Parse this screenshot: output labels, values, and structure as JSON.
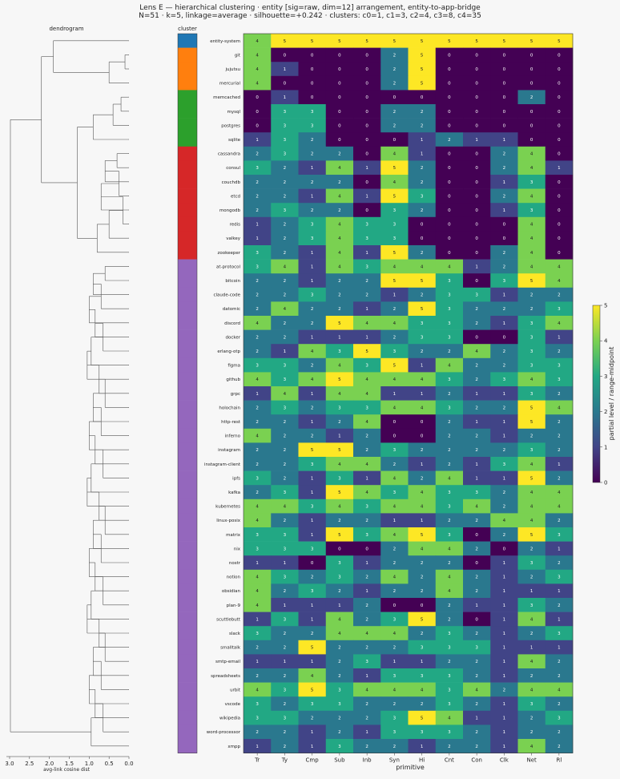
{
  "title_line1": "Lens E — hierarchical clustering · entity [sig=raw, dim=12] arrangement, entity-to-app-bridge",
  "title_line2": "N=51 · k=5, linkage=average · silhouette=+0.242 · clusters: c0=1, c1=3, c2=4, c3=8, c4=35",
  "dendrogram": {
    "title": "dendrogram",
    "xlabel": "avg-link cosine dist",
    "ticks": [
      "3.0",
      "2.5",
      "2.0",
      "1.5",
      "1.0",
      "0.5",
      "0.0"
    ]
  },
  "cluster_strip": {
    "title": "cluster",
    "colors": [
      "#1f77b4",
      "#ff7f0e",
      "#2ca02c",
      "#d62728",
      "#9467bd"
    ],
    "assignments": [
      0,
      1,
      1,
      1,
      2,
      2,
      2,
      2,
      3,
      3,
      3,
      3,
      3,
      3,
      3,
      3,
      4,
      4,
      4,
      4,
      4,
      4,
      4,
      4,
      4,
      4,
      4,
      4,
      4,
      4,
      4,
      4,
      4,
      4,
      4,
      4,
      4,
      4,
      4,
      4,
      4,
      4,
      4,
      4,
      4,
      4,
      4,
      4,
      4,
      4,
      4
    ]
  },
  "colorbar": {
    "label": "partial level / range-midpoint",
    "ticks": [
      "0",
      "1",
      "2",
      "3",
      "4",
      "5"
    ]
  },
  "chart_data": {
    "type": "heatmap",
    "xlabel": "primitive",
    "columns": [
      "Tr",
      "Ty",
      "Cmp",
      "Sub",
      "Inb",
      "Syn",
      "Hi",
      "Cnt",
      "Con",
      "Clk",
      "Net",
      "Rl"
    ],
    "rows": [
      "entity-system",
      "git",
      "jujutsu",
      "mercurial",
      "memcached",
      "mysql",
      "postgres",
      "sqlite",
      "cassandra",
      "consul",
      "couchdb",
      "etcd",
      "mongodb",
      "redis",
      "valkey",
      "zookeeper",
      "at-protocol",
      "bitcoin",
      "claude-code",
      "datomic",
      "discord",
      "docker",
      "erlang-otp",
      "figma",
      "github",
      "grpc",
      "holochain",
      "http-rest",
      "inferno",
      "instagram",
      "instagram-client",
      "ipfs",
      "kafka",
      "kubernetes",
      "linux-posix",
      "matrix",
      "nix",
      "nostr",
      "notion",
      "obsidian",
      "plan-9",
      "scuttlebutt",
      "slack",
      "smalltalk",
      "smtp-email",
      "spreadsheets",
      "urbit",
      "vscode",
      "wikipedia",
      "word-processor",
      "xmpp"
    ],
    "values": [
      [
        4,
        5,
        5,
        5,
        5,
        5,
        5,
        5,
        5,
        5,
        5,
        5
      ],
      [
        4,
        0,
        0,
        0,
        0,
        2,
        5,
        0,
        0,
        0,
        0,
        0
      ],
      [
        4,
        1,
        0,
        0,
        0,
        2,
        5,
        0,
        0,
        0,
        0,
        0
      ],
      [
        4,
        0,
        0,
        0,
        0,
        2,
        5,
        0,
        0,
        0,
        0,
        0
      ],
      [
        0,
        1,
        0,
        0,
        0,
        0,
        0,
        0,
        0,
        0,
        2,
        0
      ],
      [
        0,
        3,
        3,
        0,
        0,
        2,
        2,
        0,
        0,
        0,
        0,
        0
      ],
      [
        0,
        3,
        3,
        0,
        0,
        2,
        2,
        0,
        0,
        0,
        0,
        0
      ],
      [
        1,
        3,
        2,
        0,
        0,
        0,
        1,
        2,
        1,
        1,
        0,
        0
      ],
      [
        2,
        3,
        2,
        2,
        0,
        4,
        1,
        0,
        0,
        2,
        4,
        0
      ],
      [
        3,
        2,
        1,
        4,
        1,
        5,
        2,
        0,
        0,
        2,
        4,
        1
      ],
      [
        2,
        2,
        2,
        2,
        0,
        4,
        2,
        0,
        0,
        1,
        3,
        0
      ],
      [
        2,
        2,
        1,
        4,
        1,
        5,
        3,
        0,
        0,
        2,
        4,
        0
      ],
      [
        2,
        3,
        2,
        2,
        0,
        3,
        2,
        0,
        0,
        1,
        3,
        0
      ],
      [
        1,
        2,
        3,
        4,
        3,
        3,
        0,
        0,
        0,
        0,
        4,
        0
      ],
      [
        1,
        2,
        3,
        4,
        3,
        3,
        0,
        0,
        0,
        0,
        4,
        0
      ],
      [
        3,
        2,
        1,
        4,
        1,
        5,
        2,
        0,
        0,
        2,
        4,
        0
      ],
      [
        3,
        4,
        1,
        4,
        3,
        4,
        4,
        4,
        1,
        2,
        4,
        4
      ],
      [
        2,
        2,
        1,
        2,
        2,
        5,
        5,
        3,
        0,
        3,
        5,
        4
      ],
      [
        2,
        2,
        3,
        2,
        2,
        1,
        2,
        3,
        3,
        1,
        2,
        2
      ],
      [
        2,
        4,
        2,
        2,
        1,
        2,
        5,
        3,
        2,
        2,
        2,
        3
      ],
      [
        4,
        2,
        2,
        5,
        4,
        4,
        3,
        3,
        2,
        1,
        3,
        4
      ],
      [
        2,
        2,
        1,
        1,
        1,
        2,
        3,
        3,
        0,
        0,
        3,
        1
      ],
      [
        2,
        1,
        4,
        3,
        5,
        3,
        2,
        2,
        4,
        2,
        3,
        2
      ],
      [
        3,
        3,
        2,
        4,
        3,
        5,
        1,
        4,
        2,
        2,
        3,
        3
      ],
      [
        4,
        3,
        4,
        5,
        4,
        4,
        4,
        3,
        2,
        3,
        4,
        3
      ],
      [
        1,
        4,
        1,
        4,
        4,
        1,
        1,
        2,
        1,
        1,
        3,
        2
      ],
      [
        2,
        3,
        2,
        3,
        3,
        4,
        4,
        3,
        2,
        2,
        5,
        4
      ],
      [
        2,
        2,
        1,
        2,
        4,
        0,
        0,
        2,
        1,
        1,
        5,
        2
      ],
      [
        4,
        2,
        2,
        1,
        2,
        0,
        0,
        2,
        2,
        1,
        2,
        2
      ],
      [
        2,
        2,
        5,
        5,
        2,
        3,
        2,
        2,
        2,
        2,
        3,
        2
      ],
      [
        2,
        2,
        3,
        4,
        4,
        2,
        1,
        2,
        1,
        3,
        4,
        1
      ],
      [
        3,
        2,
        1,
        3,
        1,
        4,
        2,
        4,
        1,
        1,
        5,
        2
      ],
      [
        2,
        3,
        1,
        5,
        4,
        3,
        4,
        3,
        3,
        2,
        4,
        4
      ],
      [
        4,
        4,
        3,
        4,
        3,
        4,
        4,
        3,
        4,
        2,
        4,
        4
      ],
      [
        4,
        2,
        1,
        2,
        2,
        1,
        1,
        2,
        2,
        4,
        4,
        2
      ],
      [
        3,
        3,
        1,
        5,
        3,
        4,
        5,
        3,
        0,
        2,
        5,
        3
      ],
      [
        3,
        3,
        3,
        0,
        0,
        2,
        4,
        4,
        2,
        0,
        2,
        1
      ],
      [
        1,
        1,
        0,
        3,
        1,
        2,
        2,
        2,
        0,
        1,
        3,
        2
      ],
      [
        4,
        3,
        2,
        3,
        2,
        4,
        2,
        4,
        2,
        1,
        2,
        3
      ],
      [
        4,
        2,
        3,
        2,
        1,
        2,
        2,
        4,
        2,
        1,
        1,
        1
      ],
      [
        4,
        1,
        1,
        1,
        2,
        0,
        0,
        2,
        1,
        1,
        3,
        2
      ],
      [
        1,
        3,
        1,
        4,
        2,
        3,
        5,
        2,
        0,
        1,
        4,
        1
      ],
      [
        3,
        2,
        2,
        4,
        4,
        4,
        2,
        3,
        2,
        1,
        2,
        3
      ],
      [
        2,
        2,
        5,
        2,
        2,
        2,
        3,
        3,
        3,
        1,
        1,
        1
      ],
      [
        1,
        1,
        1,
        2,
        3,
        1,
        1,
        2,
        2,
        1,
        4,
        2
      ],
      [
        2,
        2,
        4,
        2,
        1,
        3,
        3,
        3,
        2,
        1,
        2,
        2
      ],
      [
        4,
        3,
        5,
        3,
        4,
        4,
        4,
        3,
        4,
        2,
        4,
        4
      ],
      [
        3,
        2,
        3,
        3,
        2,
        2,
        2,
        3,
        2,
        1,
        3,
        2
      ],
      [
        3,
        3,
        2,
        2,
        2,
        3,
        5,
        4,
        1,
        1,
        2,
        3
      ],
      [
        2,
        2,
        1,
        2,
        1,
        3,
        3,
        3,
        2,
        1,
        2,
        2
      ],
      [
        1,
        2,
        1,
        3,
        2,
        2,
        1,
        2,
        2,
        1,
        4,
        2
      ]
    ],
    "vmin": 0,
    "vmax": 5
  }
}
